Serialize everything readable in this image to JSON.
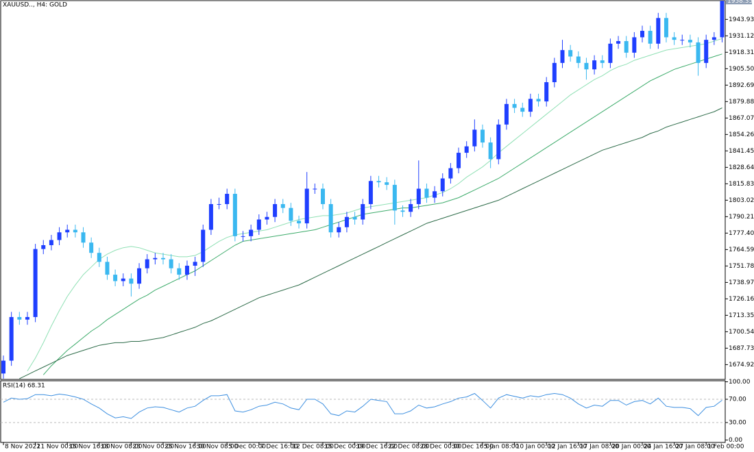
{
  "chart_data": [
    {
      "type": "candlestick",
      "title": "XAUUSD.., H4:  GOLD",
      "categories": [
        "8 Nov 2022",
        null,
        null,
        null,
        "11 Nov 00:00",
        null,
        null,
        null,
        "15 Nov 16:00",
        null,
        null,
        null,
        "18 Nov 08:00",
        null,
        null,
        null,
        "23 Nov 00:00",
        null,
        null,
        null,
        "25 Nov 16:00",
        null,
        null,
        null,
        "30 Nov 08:00",
        null,
        null,
        null,
        "5 Dec 00:00",
        null,
        null,
        null,
        "7 Dec 16:00",
        null,
        null,
        null,
        "12 Dec 08:00",
        null,
        null,
        null,
        "15 Dec 00:00",
        null,
        null,
        null,
        "19 Dec 16:00",
        null,
        null,
        null,
        "22 Dec 08:00",
        null,
        null,
        null,
        "28 Dec 00:00",
        null,
        null,
        null,
        "30 Dec 16:00",
        null,
        null,
        null,
        "5 Jan 08:00",
        null,
        null,
        null,
        "10 Jan 00:00",
        null,
        null,
        null,
        "12 Jan 16:00",
        null,
        null,
        null,
        "17 Jan 08:00",
        null,
        null,
        null,
        "20 Jan 00:00",
        null,
        null,
        null,
        "24 Jan 16:00",
        null,
        null,
        null,
        "27 Jan 08:00",
        null,
        null,
        null,
        "1 Feb 00:00",
        null,
        null
      ],
      "open": [
        1668,
        1678,
        1712,
        1710,
        1712,
        1765,
        1768,
        1772,
        1778,
        1780,
        1778,
        1770,
        1762,
        1755,
        1745,
        1740,
        1742,
        1738,
        1750,
        1757,
        1758,
        1757,
        1750,
        1745,
        1752,
        1755,
        1780,
        1800,
        1800,
        1808,
        1775,
        1775,
        1780,
        1788,
        1790,
        1800,
        1797,
        1787,
        1785,
        1812,
        1812,
        1800,
        1778,
        1782,
        1790,
        1788,
        1800,
        1818,
        1817,
        1815,
        1795,
        1794,
        1800,
        1812,
        1805,
        1810,
        1820,
        1828,
        1840,
        1845,
        1858,
        1848,
        1835,
        1862,
        1878,
        1875,
        1872,
        1882,
        1880,
        1895,
        1910,
        1920,
        1915,
        1910,
        1905,
        1912,
        1910,
        1925,
        1927,
        1918,
        1930,
        1935,
        1925,
        1945,
        1930,
        1928,
        1928,
        1926,
        1910,
        1928,
        1930
      ],
      "high": [
        1682,
        1716,
        1716,
        1716,
        1769,
        1772,
        1776,
        1782,
        1784,
        1784,
        1782,
        1774,
        1766,
        1759,
        1749,
        1746,
        1746,
        1754,
        1761,
        1762,
        1762,
        1761,
        1754,
        1756,
        1759,
        1784,
        1804,
        1805,
        1812,
        1812,
        1779,
        1784,
        1792,
        1794,
        1804,
        1804,
        1801,
        1791,
        1825,
        1816,
        1816,
        1804,
        1786,
        1794,
        1794,
        1804,
        1822,
        1822,
        1821,
        1819,
        1799,
        1804,
        1834,
        1816,
        1814,
        1824,
        1832,
        1844,
        1849,
        1866,
        1862,
        1852,
        1866,
        1882,
        1882,
        1879,
        1886,
        1886,
        1899,
        1914,
        1928,
        1924,
        1919,
        1914,
        1916,
        1916,
        1929,
        1931,
        1931,
        1934,
        1939,
        1939,
        1949,
        1949,
        1934,
        1932,
        1932,
        1930,
        1932,
        1934,
        1958.35
      ],
      "low": [
        1664,
        1674,
        1706,
        1706,
        1708,
        1761,
        1764,
        1768,
        1774,
        1774,
        1766,
        1758,
        1751,
        1741,
        1736,
        1736,
        1728,
        1734,
        1746,
        1753,
        1753,
        1746,
        1741,
        1741,
        1744,
        1751,
        1776,
        1796,
        1796,
        1771,
        1771,
        1771,
        1776,
        1784,
        1786,
        1793,
        1783,
        1781,
        1781,
        1808,
        1796,
        1774,
        1774,
        1778,
        1784,
        1784,
        1796,
        1813,
        1811,
        1784,
        1790,
        1790,
        1796,
        1801,
        1801,
        1806,
        1816,
        1824,
        1836,
        1841,
        1844,
        1828,
        1831,
        1858,
        1871,
        1868,
        1868,
        1876,
        1876,
        1891,
        1906,
        1911,
        1906,
        1897,
        1901,
        1906,
        1906,
        1921,
        1914,
        1914,
        1926,
        1921,
        1921,
        1926,
        1924,
        1924,
        1922,
        1900,
        1906,
        1924,
        1926
      ],
      "close": [
        1678,
        1712,
        1710,
        1712,
        1765,
        1768,
        1772,
        1778,
        1780,
        1778,
        1770,
        1762,
        1755,
        1745,
        1740,
        1742,
        1738,
        1750,
        1757,
        1758,
        1757,
        1750,
        1745,
        1752,
        1755,
        1780,
        1800,
        1800,
        1808,
        1775,
        1775,
        1780,
        1788,
        1790,
        1800,
        1797,
        1787,
        1785,
        1812,
        1812,
        1800,
        1778,
        1782,
        1790,
        1788,
        1800,
        1818,
        1817,
        1815,
        1795,
        1794,
        1800,
        1812,
        1805,
        1810,
        1820,
        1828,
        1840,
        1845,
        1858,
        1848,
        1835,
        1862,
        1878,
        1875,
        1872,
        1882,
        1880,
        1895,
        1910,
        1920,
        1915,
        1910,
        1905,
        1912,
        1910,
        1925,
        1927,
        1918,
        1930,
        1935,
        1925,
        1945,
        1930,
        1928,
        1928,
        1926,
        1910,
        1928,
        1930,
        1958.35
      ],
      "up_color": "#1f3fff",
      "down_color": "#3ab8f0",
      "current_price": 1958.35,
      "lines": [
        {
          "color": "#8fe0b4",
          "values": [
            null,
            null,
            null,
            1670,
            1680,
            1692,
            1705,
            1717,
            1728,
            1737,
            1745,
            1751,
            1757,
            1761,
            1764,
            1766,
            1767,
            1766,
            1764,
            1762,
            1761,
            1760,
            1759,
            1759,
            1760,
            1763,
            1767,
            1771,
            1774,
            1776,
            1777,
            1778,
            1779,
            1780,
            1782,
            1784,
            1786,
            1788,
            1789,
            1790,
            1791,
            1791,
            1792,
            1793,
            1795,
            1797,
            1798,
            1799,
            1800,
            1801,
            1802,
            1803,
            1804,
            1805,
            1807,
            1809,
            1812,
            1816,
            1821,
            1825,
            1829,
            1834,
            1840,
            1845,
            1850,
            1855,
            1860,
            1865,
            1870,
            1875,
            1880,
            1885,
            1889,
            1893,
            1897,
            1900,
            1904,
            1907,
            1909,
            1912,
            1914,
            1916,
            1918,
            1920,
            1921,
            1922,
            1923,
            1924,
            1925,
            1927,
            1929
          ]
        },
        {
          "color": "#3cab6a",
          "values": [
            null,
            null,
            null,
            null,
            null,
            1667,
            1674,
            1680,
            1686,
            1691,
            1696,
            1701,
            1705,
            1710,
            1714,
            1718,
            1722,
            1726,
            1729,
            1733,
            1736,
            1739,
            1742,
            1745,
            1748,
            1752,
            1756,
            1760,
            1764,
            1768,
            1771,
            1772,
            1773,
            1774,
            1775,
            1776,
            1777,
            1778,
            1779,
            1780,
            1782,
            1784,
            1786,
            1788,
            1790,
            1792,
            1793,
            1794,
            1795,
            1796,
            1797,
            1797,
            1798,
            1799,
            1800,
            1801,
            1803,
            1805,
            1808,
            1811,
            1814,
            1817,
            1820,
            1824,
            1828,
            1832,
            1836,
            1840,
            1844,
            1848,
            1852,
            1856,
            1860,
            1864,
            1868,
            1872,
            1876,
            1880,
            1884,
            1888,
            1892,
            1896,
            1899,
            1902,
            1905,
            1907,
            1909,
            1911,
            1913,
            1915,
            1917
          ]
        },
        {
          "color": "#2b6a47",
          "values": [
            null,
            null,
            1664,
            1667,
            1670,
            1673,
            1676,
            1679,
            1682,
            1684,
            1686,
            1688,
            1690,
            1691,
            1692,
            1692,
            1693,
            1693,
            1694,
            1695,
            1696,
            1698,
            1700,
            1702,
            1704,
            1707,
            1709,
            1712,
            1715,
            1718,
            1721,
            1724,
            1727,
            1729,
            1731,
            1733,
            1735,
            1737,
            1740,
            1743,
            1746,
            1749,
            1752,
            1755,
            1758,
            1761,
            1764,
            1767,
            1770,
            1773,
            1776,
            1779,
            1782,
            1785,
            1787,
            1789,
            1791,
            1793,
            1795,
            1797,
            1799,
            1801,
            1803,
            1806,
            1809,
            1812,
            1815,
            1818,
            1821,
            1824,
            1827,
            1830,
            1833,
            1836,
            1839,
            1842,
            1844,
            1846,
            1848,
            1850,
            1852,
            1855,
            1857,
            1860,
            1862,
            1864,
            1866,
            1868,
            1870,
            1872,
            1875
          ]
        }
      ],
      "ylim": [
        1663.4,
        1958.5
      ],
      "yticks": [
        1943.93,
        1931.12,
        1918.31,
        {
          "value": 1905.5,
          "label": "1905.50"
        },
        1892.69,
        1879.88,
        1867.07,
        1854.26,
        1841.45,
        1828.64,
        1815.83,
        1803.02,
        1790.21,
        {
          "value": 1777.4,
          "label": "1777.40"
        },
        1764.59,
        1751.78,
        1738.97,
        1726.16,
        1713.35,
        1700.54,
        1687.73,
        1674.92
      ]
    },
    {
      "type": "line",
      "title": "RSI(14) 68.31",
      "color": "#3d8fe0",
      "values": [
        65,
        72,
        70,
        71,
        78,
        78,
        76,
        79,
        77,
        74,
        70,
        62,
        55,
        45,
        38,
        40,
        37,
        48,
        55,
        57,
        56,
        52,
        48,
        55,
        58,
        68,
        76,
        76,
        78,
        50,
        48,
        52,
        58,
        60,
        65,
        62,
        55,
        52,
        70,
        70,
        62,
        45,
        42,
        50,
        48,
        58,
        70,
        68,
        66,
        45,
        45,
        50,
        60,
        55,
        57,
        62,
        66,
        72,
        74,
        80,
        68,
        55,
        72,
        78,
        75,
        72,
        76,
        74,
        78,
        80,
        78,
        72,
        62,
        55,
        60,
        58,
        68,
        68,
        60,
        66,
        68,
        62,
        72,
        58,
        56,
        56,
        54,
        42,
        56,
        58,
        68.31
      ],
      "ylim": [
        0,
        100
      ],
      "yticks": [
        {
          "value": 100,
          "label": "100.00"
        },
        {
          "value": 70,
          "label": "70.00"
        },
        {
          "value": 30,
          "label": "30.00"
        },
        {
          "value": 0,
          "label": "0.00"
        }
      ],
      "levels": [
        70,
        30
      ]
    }
  ]
}
